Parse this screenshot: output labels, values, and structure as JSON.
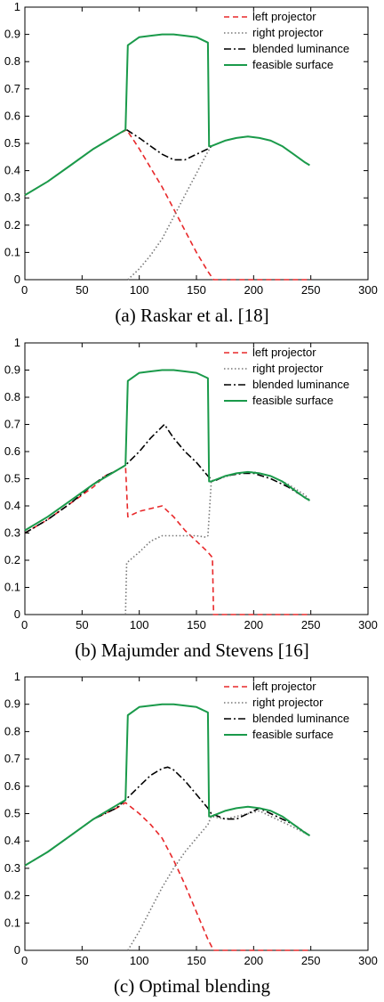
{
  "chart_data": [
    {
      "type": "line",
      "caption": "(a) Raskar et al. [18]",
      "xlim": [
        0,
        300
      ],
      "ylim": [
        0,
        1
      ],
      "xticks": [
        "0",
        "50",
        "100",
        "150",
        "200",
        "250",
        "300"
      ],
      "yticks": [
        "0",
        "0.1",
        "0.2",
        "0.3",
        "0.4",
        "0.5",
        "0.6",
        "0.7",
        "0.8",
        "0.9",
        "1"
      ],
      "legend_position": "top-right",
      "series": [
        {
          "name": "left projector",
          "color": "#e8282a",
          "style": "dashed",
          "x": [
            0,
            20,
            40,
            60,
            80,
            89,
            100,
            110,
            120,
            130,
            140,
            150,
            160,
            165,
            200,
            250
          ],
          "y": [
            0.31,
            0.36,
            0.42,
            0.48,
            0.53,
            0.55,
            0.48,
            0.41,
            0.34,
            0.26,
            0.18,
            0.1,
            0.03,
            0.0,
            0.0,
            0.0
          ]
        },
        {
          "name": "right projector",
          "color": "#777777",
          "style": "dotted",
          "x": [
            90,
            100,
            110,
            120,
            130,
            140,
            150,
            160,
            163
          ],
          "y": [
            0.0,
            0.04,
            0.09,
            0.15,
            0.23,
            0.31,
            0.39,
            0.47,
            0.49
          ]
        },
        {
          "name": "blended luminance",
          "color": "#000000",
          "style": "dashdot",
          "x": [
            89,
            100,
            110,
            120,
            130,
            140,
            150,
            160,
            163
          ],
          "y": [
            0.55,
            0.52,
            0.49,
            0.46,
            0.44,
            0.44,
            0.46,
            0.48,
            0.49
          ]
        },
        {
          "name": "feasible surface",
          "color": "#1a9a4a",
          "style": "solid",
          "x": [
            0,
            20,
            40,
            60,
            80,
            88,
            90,
            100,
            110,
            120,
            130,
            140,
            150,
            160,
            161,
            163,
            175,
            185,
            195,
            205,
            215,
            225,
            235,
            245,
            249
          ],
          "y": [
            0.31,
            0.36,
            0.42,
            0.48,
            0.53,
            0.55,
            0.86,
            0.89,
            0.895,
            0.9,
            0.9,
            0.895,
            0.89,
            0.87,
            0.49,
            0.49,
            0.51,
            0.52,
            0.525,
            0.52,
            0.51,
            0.49,
            0.46,
            0.43,
            0.42
          ]
        }
      ]
    },
    {
      "type": "line",
      "caption": "(b) Majumder and Stevens [16]",
      "xlim": [
        0,
        300
      ],
      "ylim": [
        0,
        1
      ],
      "xticks": [
        "0",
        "50",
        "100",
        "150",
        "200",
        "250",
        "300"
      ],
      "yticks": [
        "0",
        "0.1",
        "0.2",
        "0.3",
        "0.4",
        "0.5",
        "0.6",
        "0.7",
        "0.8",
        "0.9",
        "1"
      ],
      "legend_position": "top-right",
      "series": [
        {
          "name": "left projector",
          "color": "#e8282a",
          "style": "dashed",
          "x": [
            0,
            20,
            40,
            60,
            70,
            80,
            88,
            90,
            100,
            110,
            120,
            130,
            140,
            150,
            160,
            164,
            165,
            200,
            250
          ],
          "y": [
            0.3,
            0.35,
            0.41,
            0.47,
            0.51,
            0.53,
            0.55,
            0.36,
            0.38,
            0.39,
            0.4,
            0.36,
            0.31,
            0.27,
            0.23,
            0.21,
            0.0,
            0.0,
            0.0
          ]
        },
        {
          "name": "right projector",
          "color": "#777777",
          "style": "dotted",
          "x": [
            88,
            89,
            100,
            110,
            120,
            130,
            140,
            150,
            158,
            160,
            163,
            170,
            185,
            200,
            215,
            230,
            245,
            249
          ],
          "y": [
            0.0,
            0.19,
            0.23,
            0.27,
            0.29,
            0.29,
            0.29,
            0.29,
            0.285,
            0.29,
            0.49,
            0.5,
            0.52,
            0.525,
            0.51,
            0.48,
            0.44,
            0.42
          ]
        },
        {
          "name": "blended luminance",
          "color": "#000000",
          "style": "dashdot",
          "x": [
            0,
            20,
            40,
            60,
            70,
            80,
            88,
            100,
            110,
            122,
            130,
            140,
            150,
            160,
            165,
            175,
            190,
            200,
            215,
            230,
            249
          ],
          "y": [
            0.3,
            0.35,
            0.41,
            0.48,
            0.51,
            0.53,
            0.55,
            0.6,
            0.65,
            0.7,
            0.65,
            0.6,
            0.56,
            0.51,
            0.49,
            0.51,
            0.52,
            0.52,
            0.5,
            0.47,
            0.42
          ]
        },
        {
          "name": "feasible surface",
          "color": "#1a9a4a",
          "style": "solid",
          "x": [
            0,
            20,
            40,
            60,
            80,
            88,
            90,
            100,
            110,
            120,
            130,
            140,
            150,
            160,
            161,
            163,
            175,
            185,
            195,
            205,
            215,
            225,
            235,
            245,
            249
          ],
          "y": [
            0.31,
            0.36,
            0.42,
            0.48,
            0.53,
            0.55,
            0.86,
            0.89,
            0.895,
            0.9,
            0.9,
            0.895,
            0.89,
            0.87,
            0.49,
            0.49,
            0.51,
            0.52,
            0.525,
            0.52,
            0.51,
            0.49,
            0.46,
            0.43,
            0.42
          ]
        }
      ]
    },
    {
      "type": "line",
      "caption": "(c) Optimal blending",
      "xlim": [
        0,
        300
      ],
      "ylim": [
        0,
        1
      ],
      "xticks": [
        "0",
        "50",
        "100",
        "150",
        "200",
        "250",
        "300"
      ],
      "yticks": [
        "0",
        "0.1",
        "0.2",
        "0.3",
        "0.4",
        "0.5",
        "0.6",
        "0.7",
        "0.8",
        "0.9",
        "1"
      ],
      "legend_position": "top-right",
      "series": [
        {
          "name": "left projector",
          "color": "#e8282a",
          "style": "dashed",
          "x": [
            0,
            20,
            40,
            60,
            80,
            88,
            100,
            110,
            120,
            130,
            140,
            150,
            160,
            165,
            200,
            250
          ],
          "y": [
            0.31,
            0.36,
            0.42,
            0.48,
            0.52,
            0.54,
            0.5,
            0.46,
            0.41,
            0.33,
            0.24,
            0.14,
            0.04,
            0.0,
            0.0,
            0.0
          ]
        },
        {
          "name": "right projector",
          "color": "#777777",
          "style": "dotted",
          "x": [
            90,
            100,
            110,
            120,
            130,
            140,
            150,
            160,
            163,
            175,
            185,
            195,
            205,
            215,
            225,
            235,
            249
          ],
          "y": [
            0.0,
            0.07,
            0.15,
            0.23,
            0.3,
            0.36,
            0.41,
            0.46,
            0.49,
            0.48,
            0.49,
            0.5,
            0.51,
            0.49,
            0.47,
            0.45,
            0.42
          ]
        },
        {
          "name": "blended luminance",
          "color": "#000000",
          "style": "dashdot",
          "x": [
            0,
            20,
            40,
            60,
            80,
            88,
            100,
            110,
            120,
            125,
            130,
            140,
            150,
            160,
            163,
            175,
            185,
            195,
            205,
            215,
            225,
            235,
            249
          ],
          "y": [
            0.31,
            0.36,
            0.42,
            0.48,
            0.52,
            0.55,
            0.6,
            0.64,
            0.665,
            0.67,
            0.66,
            0.62,
            0.57,
            0.52,
            0.5,
            0.48,
            0.48,
            0.5,
            0.52,
            0.5,
            0.48,
            0.46,
            0.42
          ]
        },
        {
          "name": "feasible surface",
          "color": "#1a9a4a",
          "style": "solid",
          "x": [
            0,
            20,
            40,
            60,
            80,
            88,
            90,
            100,
            110,
            120,
            130,
            140,
            150,
            160,
            161,
            163,
            175,
            185,
            195,
            205,
            215,
            225,
            235,
            245,
            249
          ],
          "y": [
            0.31,
            0.36,
            0.42,
            0.48,
            0.53,
            0.55,
            0.86,
            0.89,
            0.895,
            0.9,
            0.9,
            0.895,
            0.89,
            0.87,
            0.49,
            0.49,
            0.51,
            0.52,
            0.525,
            0.52,
            0.51,
            0.49,
            0.46,
            0.43,
            0.42
          ]
        }
      ]
    }
  ]
}
